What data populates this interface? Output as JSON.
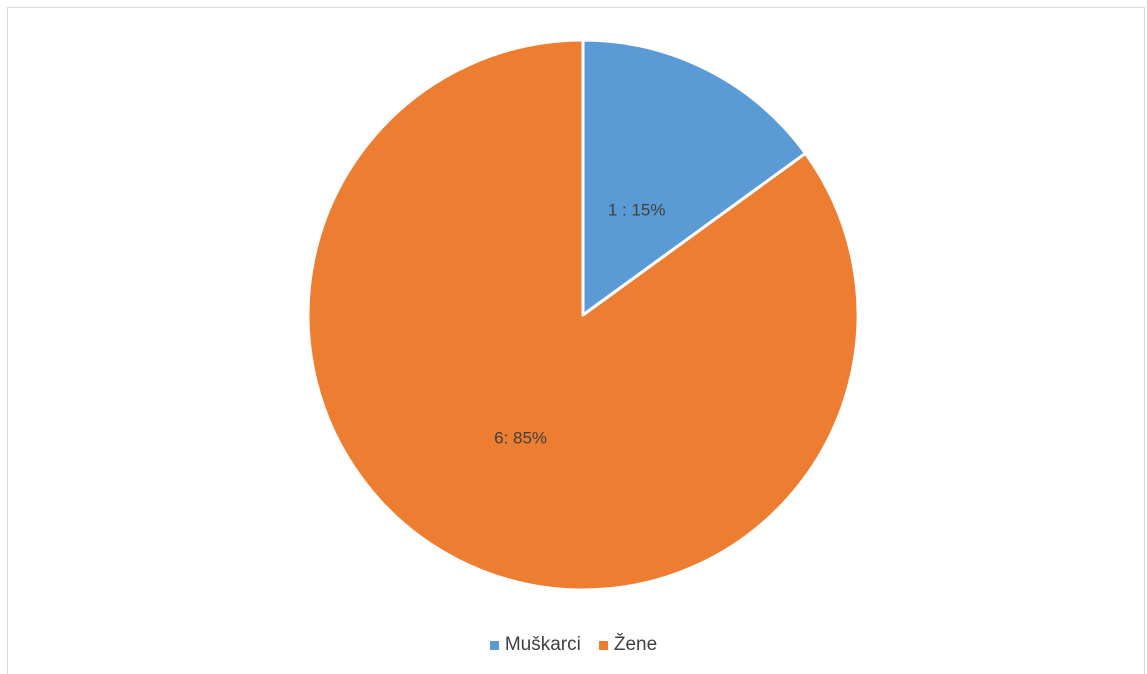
{
  "chart_data": {
    "type": "pie",
    "title": "",
    "start_angle_deg": 0,
    "direction": "clockwise",
    "legend_position": "bottom",
    "series": [
      {
        "values": [
          15,
          85
        ],
        "categories": [
          "Muškarci",
          "Žene"
        ],
        "colors": [
          "#5b9bd5",
          "#ed7d31"
        ],
        "data_labels": [
          "1 : 15%",
          "6: 85%"
        ]
      }
    ]
  },
  "legend": {
    "items": [
      {
        "label": "Muškarci",
        "color": "#5b9bd5"
      },
      {
        "label": "Žene",
        "color": "#ed7d31"
      }
    ]
  }
}
